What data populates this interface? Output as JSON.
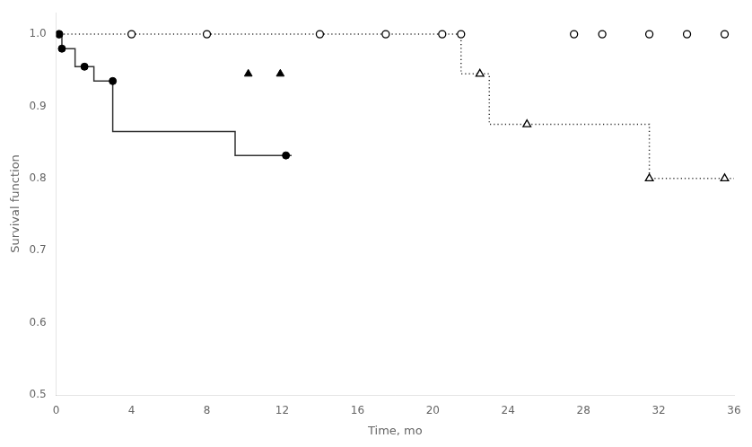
{
  "chart_data": {
    "type": "line",
    "xlabel": "Time, mo",
    "ylabel": "Survival function",
    "xlim": [
      0,
      36
    ],
    "ylim": [
      0.5,
      1.03
    ],
    "xticks": [
      0,
      4,
      8,
      12,
      16,
      20,
      24,
      28,
      32,
      36
    ],
    "yticks": [
      0.5,
      0.6,
      0.7,
      0.8,
      0.9,
      {
        "value": 1.0,
        "label": "1.0"
      }
    ],
    "grid": false,
    "series": [
      {
        "type": "line",
        "color": "#333333",
        "line_style": "solid",
        "x": [
          0,
          0.3,
          0.3,
          1.0,
          1.0,
          2.0,
          2.0,
          3.0,
          3.0,
          9.5,
          9.5,
          12.5
        ],
        "values": [
          1.0,
          1.0,
          0.98,
          0.98,
          0.955,
          0.955,
          0.935,
          0.935,
          0.865,
          0.865,
          0.832,
          0.832
        ]
      },
      {
        "type": "line",
        "color": "#333333",
        "line_style": "dotted",
        "x": [
          0,
          21.5,
          21.5,
          23.0,
          23.0,
          31.5,
          31.5,
          36
        ],
        "values": [
          1.0,
          1.0,
          0.945,
          0.945,
          0.875,
          0.875,
          0.8,
          0.8
        ]
      },
      {
        "type": "scatter",
        "color": "#000000",
        "marker": "filled_circle",
        "x": [
          0.15,
          0.3,
          1.5,
          3.0,
          12.2
        ],
        "values": [
          1.0,
          0.98,
          0.955,
          0.935,
          0.832
        ]
      },
      {
        "type": "scatter",
        "color": "#000000",
        "marker": "filled_triangle",
        "x": [
          10.2,
          11.9
        ],
        "values": [
          0.945,
          0.945
        ]
      },
      {
        "type": "scatter",
        "color": "#000000",
        "marker": "open_circle",
        "x": [
          0.15,
          4.0,
          8.0,
          14.0,
          17.5,
          20.5,
          21.5,
          27.5,
          29.0,
          31.5,
          33.5,
          35.5
        ],
        "values": [
          1.0,
          1.0,
          1.0,
          1.0,
          1.0,
          1.0,
          1.0,
          1.0,
          1.0,
          1.0,
          1.0,
          1.0
        ]
      },
      {
        "type": "scatter",
        "color": "#000000",
        "marker": "open_triangle",
        "x": [
          22.5,
          25.0,
          31.5,
          35.5
        ],
        "values": [
          0.945,
          0.875,
          0.8,
          0.8
        ]
      }
    ]
  }
}
